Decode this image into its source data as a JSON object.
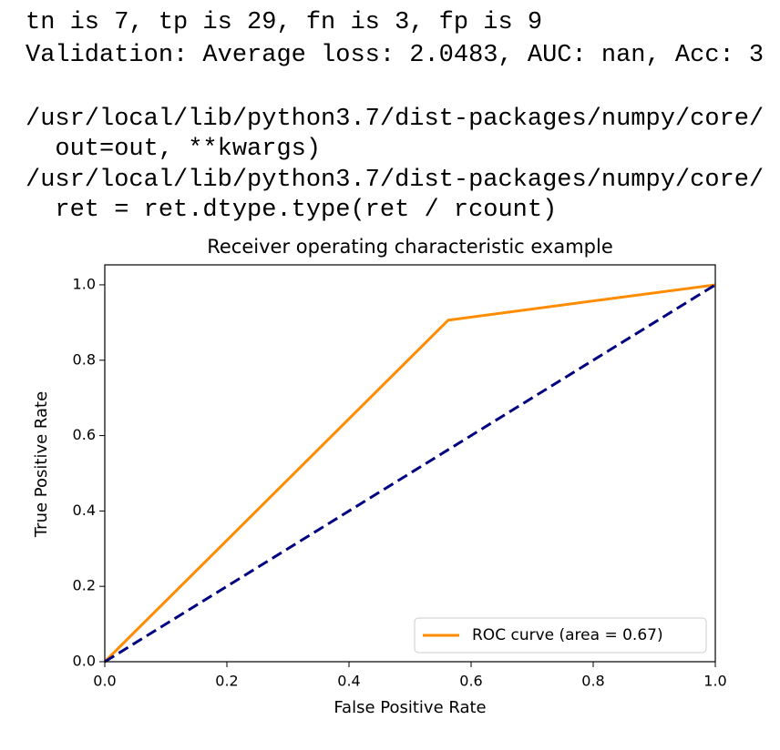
{
  "console": {
    "output": [
      "tn is 7, tp is 29, fn is 3, fp is 9",
      "Validation: Average loss: 2.0483, AUC: nan, Acc: 3"
    ],
    "warnings": [
      "/usr/local/lib/python3.7/dist-packages/numpy/core/",
      "  out=out, **kwargs)",
      "/usr/local/lib/python3.7/dist-packages/numpy/core/",
      "  ret = ret.dtype.type(ret / rcount)"
    ]
  },
  "chart_data": {
    "type": "line",
    "title": "Receiver operating characteristic example",
    "x_label": "False Positive Rate",
    "y_label": "True Positive Rate",
    "series": [
      {
        "name": "ROC curve (area = 0.67)",
        "color": "#ff8c00",
        "x": [
          0,
          0.5625,
          1
        ],
        "values": [
          0,
          0.9063,
          1
        ]
      },
      {
        "color": "#000080",
        "style": "dashed",
        "x": [
          0,
          1
        ],
        "values": [
          0,
          1
        ]
      }
    ],
    "xlim": [
      0,
      1
    ],
    "ylim": [
      0,
      1.053
    ],
    "xticks": [
      {
        "value": 0,
        "label": "0.0"
      },
      0.2,
      0.4,
      0.6,
      0.8,
      {
        "value": 1,
        "label": "1.0"
      }
    ],
    "yticks": [
      {
        "value": 0,
        "label": "0.0"
      },
      0.2,
      0.4,
      0.6,
      0.8,
      {
        "value": 1,
        "label": "1.0"
      }
    ],
    "legend": "lower right",
    "grid": false
  }
}
